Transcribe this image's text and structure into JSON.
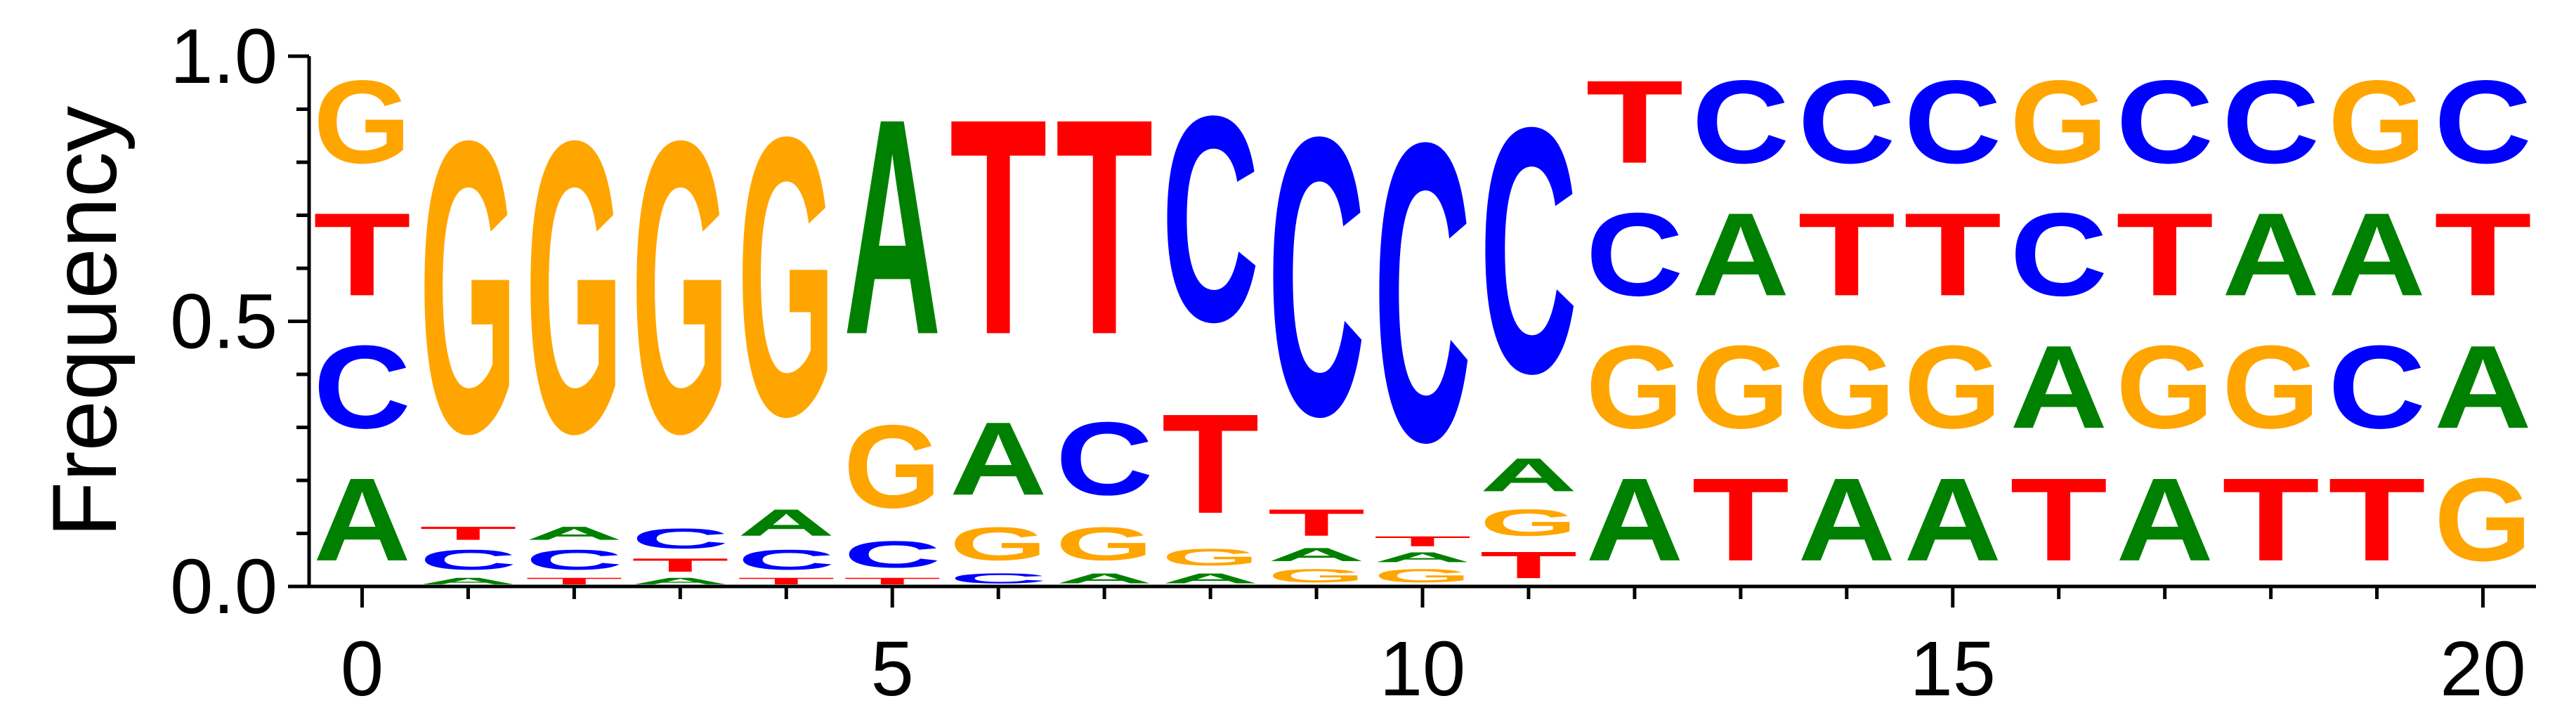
{
  "chart_data": {
    "type": "sequence-logo",
    "ylabel": "Frequency",
    "xlabel": "",
    "ylim": [
      0,
      1
    ],
    "xlim": [
      -0.5,
      20.5
    ],
    "y_ticks": [
      "0.0",
      "0.5",
      "1.0"
    ],
    "x_ticks": [
      "0",
      "5",
      "10",
      "15",
      "20"
    ],
    "colors": {
      "A": "#008000",
      "C": "#0000ff",
      "G": "#ffa500",
      "T": "#ff0000"
    },
    "positions": [
      {
        "pos": 0,
        "stack": [
          [
            "A",
            0.25
          ],
          [
            "C",
            0.25
          ],
          [
            "T",
            0.25
          ],
          [
            "G",
            0.25
          ]
        ]
      },
      {
        "pos": 1,
        "stack": [
          [
            "A",
            0.02
          ],
          [
            "C",
            0.06
          ],
          [
            "T",
            0.04
          ],
          [
            "G",
            0.88
          ]
        ]
      },
      {
        "pos": 2,
        "stack": [
          [
            "T",
            0.02
          ],
          [
            "C",
            0.06
          ],
          [
            "A",
            0.04
          ],
          [
            "G",
            0.88
          ]
        ]
      },
      {
        "pos": 3,
        "stack": [
          [
            "A",
            0.02
          ],
          [
            "T",
            0.04
          ],
          [
            "C",
            0.06
          ],
          [
            "G",
            0.88
          ]
        ]
      },
      {
        "pos": 4,
        "stack": [
          [
            "T",
            0.02
          ],
          [
            "C",
            0.06
          ],
          [
            "A",
            0.08
          ],
          [
            "G",
            0.84
          ]
        ]
      },
      {
        "pos": 5,
        "stack": [
          [
            "T",
            0.02
          ],
          [
            "C",
            0.08
          ],
          [
            "G",
            0.25
          ],
          [
            "A",
            0.65
          ]
        ]
      },
      {
        "pos": 6,
        "stack": [
          [
            "C",
            0.03
          ],
          [
            "G",
            0.1
          ],
          [
            "A",
            0.22
          ],
          [
            "T",
            0.65
          ]
        ]
      },
      {
        "pos": 7,
        "stack": [
          [
            "A",
            0.03
          ],
          [
            "G",
            0.1
          ],
          [
            "C",
            0.22
          ],
          [
            "T",
            0.65
          ]
        ]
      },
      {
        "pos": 8,
        "stack": [
          [
            "A",
            0.03
          ],
          [
            "G",
            0.05
          ],
          [
            "T",
            0.3
          ],
          [
            "C",
            0.62
          ]
        ]
      },
      {
        "pos": 9,
        "stack": [
          [
            "G",
            0.04
          ],
          [
            "A",
            0.04
          ],
          [
            "T",
            0.08
          ],
          [
            "C",
            0.84
          ]
        ]
      },
      {
        "pos": 10,
        "stack": [
          [
            "G",
            0.04
          ],
          [
            "A",
            0.03
          ],
          [
            "T",
            0.03
          ],
          [
            "C",
            0.9
          ]
        ]
      },
      {
        "pos": 11,
        "stack": [
          [
            "T",
            0.08
          ],
          [
            "G",
            0.08
          ],
          [
            "A",
            0.1
          ],
          [
            "C",
            0.74
          ]
        ]
      },
      {
        "pos": 12,
        "stack": [
          [
            "A",
            0.25
          ],
          [
            "G",
            0.25
          ],
          [
            "C",
            0.25
          ],
          [
            "T",
            0.25
          ]
        ]
      },
      {
        "pos": 13,
        "stack": [
          [
            "T",
            0.25
          ],
          [
            "G",
            0.25
          ],
          [
            "A",
            0.25
          ],
          [
            "C",
            0.25
          ]
        ]
      },
      {
        "pos": 14,
        "stack": [
          [
            "A",
            0.25
          ],
          [
            "G",
            0.25
          ],
          [
            "T",
            0.25
          ],
          [
            "C",
            0.25
          ]
        ]
      },
      {
        "pos": 15,
        "stack": [
          [
            "A",
            0.25
          ],
          [
            "G",
            0.25
          ],
          [
            "T",
            0.25
          ],
          [
            "C",
            0.25
          ]
        ]
      },
      {
        "pos": 16,
        "stack": [
          [
            "T",
            0.25
          ],
          [
            "A",
            0.25
          ],
          [
            "C",
            0.25
          ],
          [
            "G",
            0.25
          ]
        ]
      },
      {
        "pos": 17,
        "stack": [
          [
            "A",
            0.25
          ],
          [
            "G",
            0.25
          ],
          [
            "T",
            0.25
          ],
          [
            "C",
            0.25
          ]
        ]
      },
      {
        "pos": 18,
        "stack": [
          [
            "T",
            0.25
          ],
          [
            "G",
            0.25
          ],
          [
            "A",
            0.25
          ],
          [
            "C",
            0.25
          ]
        ]
      },
      {
        "pos": 19,
        "stack": [
          [
            "T",
            0.25
          ],
          [
            "C",
            0.25
          ],
          [
            "A",
            0.25
          ],
          [
            "G",
            0.25
          ]
        ]
      },
      {
        "pos": 20,
        "stack": [
          [
            "G",
            0.25
          ],
          [
            "A",
            0.25
          ],
          [
            "T",
            0.25
          ],
          [
            "C",
            0.25
          ]
        ]
      }
    ]
  }
}
